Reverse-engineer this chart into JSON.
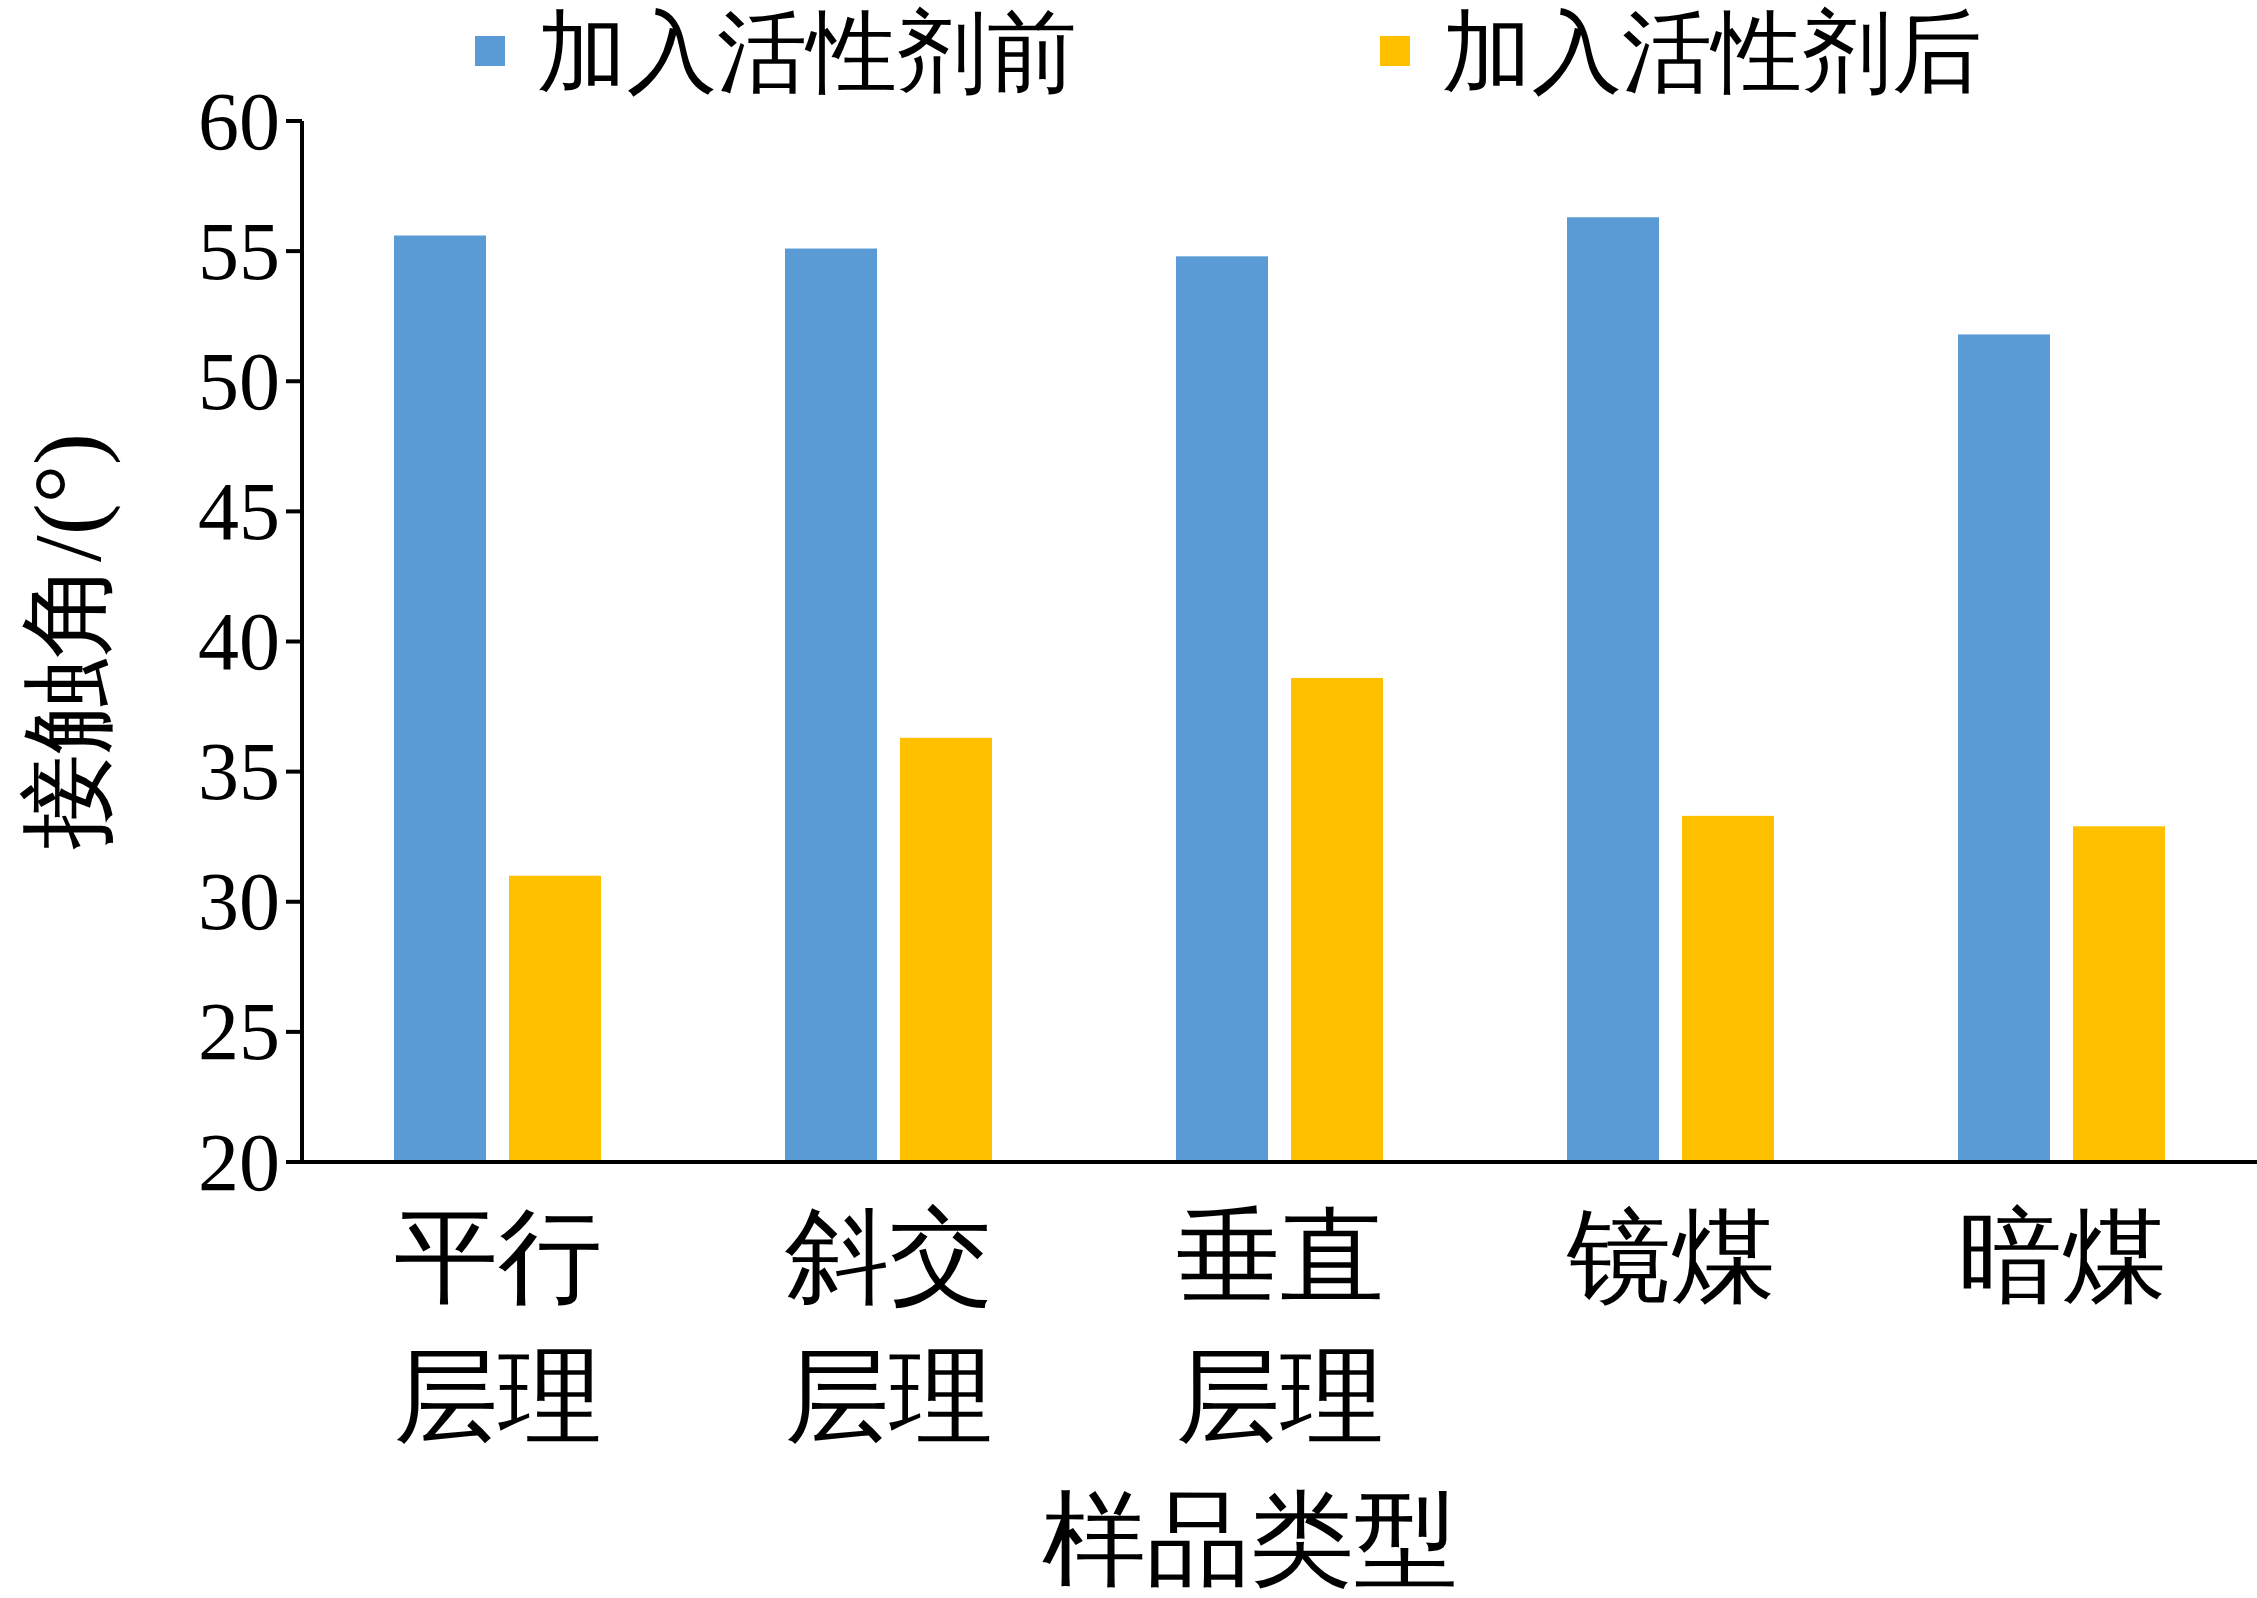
{
  "chart_data": {
    "type": "bar",
    "xlabel": "样品类型",
    "ylabel": "接触角/(°)",
    "categories": [
      "平行层理",
      "斜交层理",
      "垂直层理",
      "镜煤",
      "暗煤"
    ],
    "series": [
      {
        "name": "加入活性剂前",
        "color": "#5b9bd5",
        "values": [
          55.6,
          55.1,
          54.8,
          56.3,
          51.8
        ]
      },
      {
        "name": "加入活性剂后",
        "color": "#ffc000",
        "values": [
          31.0,
          36.3,
          38.6,
          33.3,
          32.9
        ]
      }
    ],
    "ylim": [
      20,
      60
    ],
    "yticks": [
      20,
      25,
      30,
      35,
      40,
      45,
      50,
      55,
      60
    ],
    "grid": false,
    "legend": "top"
  }
}
